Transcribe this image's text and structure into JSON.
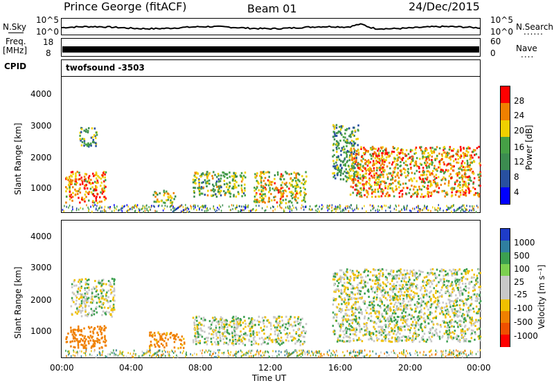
{
  "header": {
    "station": "Prince George (fitACF)",
    "beam": "Beam 01",
    "date": "24/Dec/2015"
  },
  "noise_panel": {
    "left_label": "N.Sky",
    "right_label": "N.Search",
    "right_dots": "......",
    "left_ticks": [
      "10^5",
      "10^0"
    ],
    "right_ticks": [
      "10^5",
      "10^0"
    ]
  },
  "freq_panel": {
    "left_label_1": "Freq.",
    "left_label_2": "[MHz]",
    "right_label": "Nave",
    "right_dots": "....",
    "left_ticks": [
      "18",
      "8"
    ],
    "right_ticks": [
      "60",
      "0"
    ]
  },
  "cpid": {
    "label": "CPID",
    "program": "twofsound -3503"
  },
  "power_panel": {
    "ylabel": "Slant Range [km]",
    "yticks": [
      "4000",
      "3000",
      "2000",
      "1000"
    ],
    "colorbar_label": "Power [dB]",
    "colorbar_ticks": [
      "28",
      "24",
      "20",
      "16",
      "12",
      "8",
      "4"
    ],
    "colors": [
      "#0000ff",
      "#2850a0",
      "#3c8c50",
      "#46a046",
      "#f0d000",
      "#f08000",
      "#ff0000"
    ]
  },
  "velocity_panel": {
    "ylabel": "Slant Range [km]",
    "yticks": [
      "4000",
      "3000",
      "2000",
      "1000"
    ],
    "colorbar_label": "Velocity [m s⁻¹]",
    "colorbar_ticks": [
      "1000",
      "500",
      "100",
      "25",
      "-25",
      "-100",
      "-500",
      "-1000"
    ],
    "colors": [
      "#1e3cc8",
      "#2f7fa0",
      "#3ca050",
      "#7cd050",
      "#c8c8c8",
      "#c8c8c8",
      "#f0c000",
      "#f08000",
      "#f05000",
      "#ff0000"
    ]
  },
  "xaxis": {
    "ticks": [
      "00:00",
      "04:00",
      "08:00",
      "12:00",
      "16:00",
      "20:00",
      "00:00"
    ],
    "label": "Time UT"
  },
  "chart_data": {
    "type": "heatmap",
    "x_range_hours": [
      0,
      24
    ],
    "y_range_km": [
      180,
      4500
    ],
    "power_regions": [
      {
        "t0": 0.2,
        "t1": 2.5,
        "r0": 500,
        "r1": 1500,
        "value_db": 24
      },
      {
        "t0": 1.0,
        "t1": 2.0,
        "r0": 2300,
        "r1": 2900,
        "value_db": 14
      },
      {
        "t0": 5.2,
        "t1": 6.5,
        "r0": 500,
        "r1": 900,
        "value_db": 18
      },
      {
        "t0": 7.5,
        "t1": 10.5,
        "r0": 700,
        "r1": 1500,
        "value_db": 16
      },
      {
        "t0": 11.0,
        "t1": 14.0,
        "r0": 500,
        "r1": 1500,
        "value_db": 20
      },
      {
        "t0": 15.5,
        "t1": 17.0,
        "r0": 1200,
        "r1": 3000,
        "value_db": 14
      },
      {
        "t0": 16.5,
        "t1": 24.0,
        "r0": 700,
        "r1": 2300,
        "value_db": 22
      }
    ],
    "velocity_regions": [
      {
        "t0": 0.2,
        "t1": 2.5,
        "r0": 500,
        "r1": 1200,
        "value_ms": -200
      },
      {
        "t0": 0.5,
        "t1": 3.0,
        "r0": 1500,
        "r1": 2700,
        "value_ms": 0
      },
      {
        "t0": 5.0,
        "t1": 7.0,
        "r0": 500,
        "r1": 1000,
        "value_ms": -150
      },
      {
        "t0": 7.5,
        "t1": 14.0,
        "r0": 600,
        "r1": 1500,
        "value_ms": 0
      },
      {
        "t0": 15.5,
        "t1": 24.0,
        "r0": 700,
        "r1": 3000,
        "value_ms": 0
      }
    ]
  }
}
